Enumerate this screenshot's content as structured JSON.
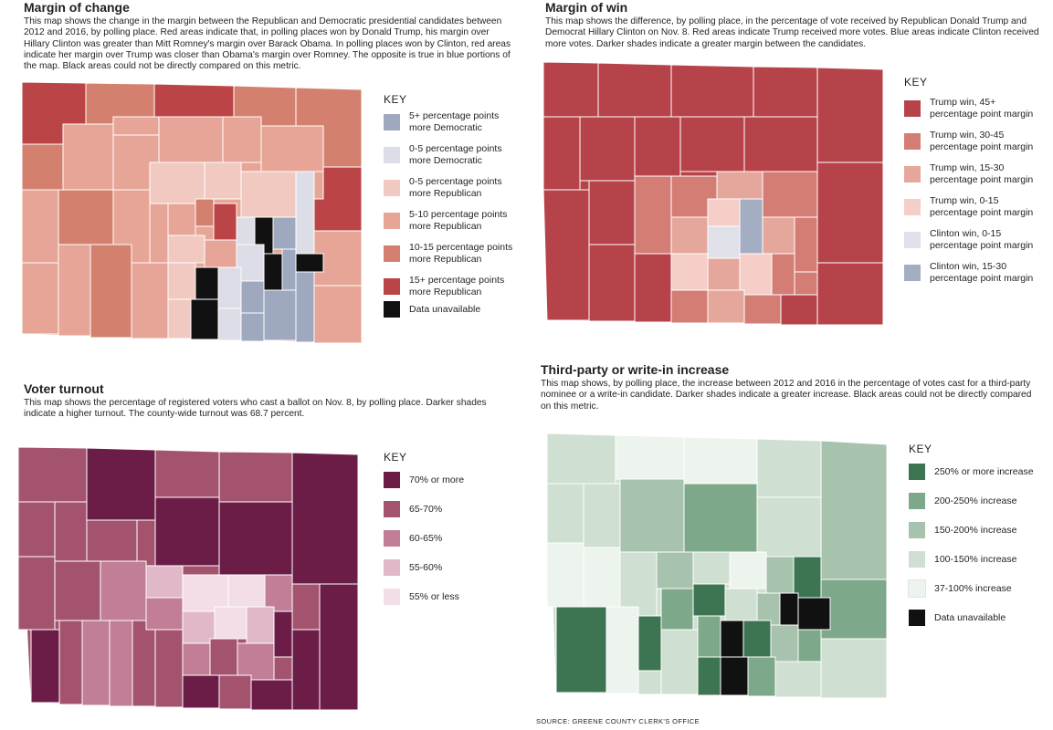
{
  "panels": {
    "margin_change": {
      "title": "Margin of change",
      "description": "This map shows the change in the margin between the Republican and Democratic presidential candidates between 2012 and 2016, by polling place. Red areas indicate that, in polling places won by Donald Trump, his margin over Hillary Clinton was greater than Mitt Romney's margin over Barack Obama. In polling places won by Clinton, red areas indicate her margin over Trump was closer than Obama's margin over Romney. The opposite is true in blue portions of the map. Black areas could not be directly compared on this metric.",
      "key_title": "KEY",
      "legend": [
        {
          "label": "5+ percentage points more Democratic",
          "color": "#9ea9bf"
        },
        {
          "label": "0-5 percentage points more Democratic",
          "color": "#dcdde6"
        },
        {
          "label": "0-5 percentage points more Republican",
          "color": "#f2c9c0"
        },
        {
          "label": "5-10 percentage points more Republican",
          "color": "#e6a596"
        },
        {
          "label": "10-15 percentage points more Republican",
          "color": "#d4806f"
        },
        {
          "label": "15+ percentage points more Republican",
          "color": "#bb4447"
        },
        {
          "label": "Data unavailable",
          "color": "#111111"
        }
      ]
    },
    "margin_win": {
      "title": "Margin of win",
      "description": "This map shows the difference, by polling place, in the percentage of vote received by Republican Donald Trump and Democrat Hillary Clinton on Nov. 8. Red areas indicate Trump received more votes. Blue areas indicate Clinton received more votes. Darker shades indicate a greater margin between the candidates.",
      "key_title": "KEY",
      "legend": [
        {
          "label": "Trump win, 45+ percentage point margin",
          "color": "#b7434a"
        },
        {
          "label": "Trump win, 30-45 percentage point margin",
          "color": "#d47d74"
        },
        {
          "label": "Trump win, 15-30 percentage point margin",
          "color": "#e5a79c"
        },
        {
          "label": "Trump win, 0-15 percentage point margin",
          "color": "#f4cec7"
        },
        {
          "label": "Clinton win, 0-15 percentage point margin",
          "color": "#dfe0e8"
        },
        {
          "label": "Clinton win, 15-30 percentage point margin",
          "color": "#a4aec3"
        }
      ]
    },
    "turnout": {
      "title": "Voter turnout",
      "description": "This map shows the percentage of registered voters who cast a ballot on Nov. 8, by polling place. Darker shades indicate a higher turnout. The county-wide turnout was 68.7 percent.",
      "key_title": "KEY",
      "legend": [
        {
          "label": "70% or more",
          "color": "#6b1d47"
        },
        {
          "label": "65-70%",
          "color": "#a4536f"
        },
        {
          "label": "60-65%",
          "color": "#c27d97"
        },
        {
          "label": "55-60%",
          "color": "#e0b8c9"
        },
        {
          "label": "55% or less",
          "color": "#f3dde6"
        }
      ]
    },
    "third_party": {
      "title": "Third-party or write-in increase",
      "description": "This map shows, by polling place, the increase between 2012 and 2016 in the percentage of votes cast for a third-party nominee or a write-in candidate. Darker shades indicate a greater increase. Black areas could not be directly compared on this metric.",
      "key_title": "KEY",
      "legend": [
        {
          "label": "250% or more increase",
          "color": "#3d7452"
        },
        {
          "label": "200-250% increase",
          "color": "#7ea88a"
        },
        {
          "label": "150-200% increase",
          "color": "#a7c2ad"
        },
        {
          "label": "100-150% increase",
          "color": "#cfdfd1"
        },
        {
          "label": "37-100% increase",
          "color": "#edf3ed"
        },
        {
          "label": "Data unavailable",
          "color": "#111111"
        }
      ]
    }
  },
  "source": "SOURCE:  GREENE COUNTY CLERK'S OFFICE"
}
